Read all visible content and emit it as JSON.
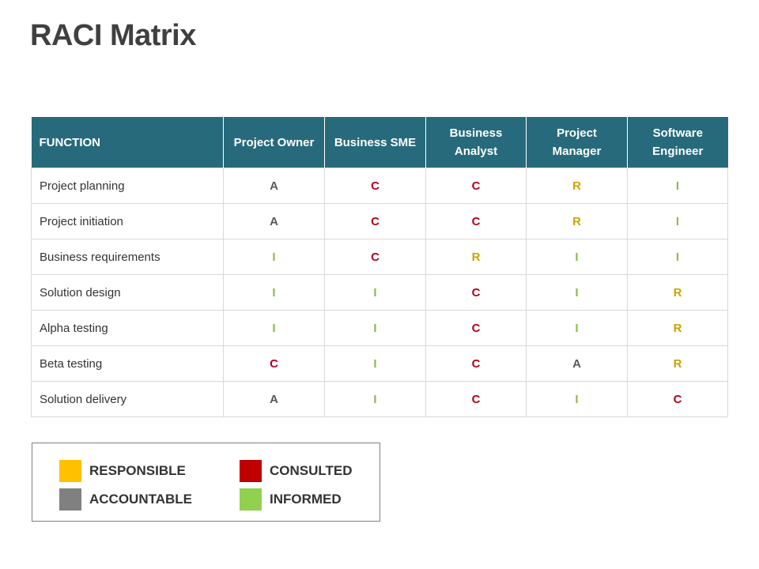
{
  "title": "RACI Matrix",
  "table": {
    "headers": [
      "FUNCTION",
      "Project Owner",
      "Business SME",
      "Business Analyst",
      "Project Manager",
      "Software Engineer"
    ],
    "rows": [
      {
        "function": "Project planning",
        "values": [
          "A",
          "C",
          "C",
          "R",
          "I"
        ]
      },
      {
        "function": "Project initiation",
        "values": [
          "A",
          "C",
          "C",
          "R",
          "I"
        ]
      },
      {
        "function": "Business requirements",
        "values": [
          "I",
          "C",
          "R",
          "I",
          "I"
        ]
      },
      {
        "function": "Solution design",
        "values": [
          "I",
          "I",
          "C",
          "I",
          "R"
        ]
      },
      {
        "function": "Alpha testing",
        "values": [
          "I",
          "I",
          "C",
          "I",
          "R"
        ]
      },
      {
        "function": "Beta testing",
        "values": [
          "C",
          "I",
          "C",
          "A",
          "R"
        ]
      },
      {
        "function": "Solution delivery",
        "values": [
          "A",
          "I",
          "C",
          "I",
          "C"
        ]
      }
    ]
  },
  "legend": {
    "items": [
      {
        "label": "RESPONSIBLE",
        "color": "#ffc000"
      },
      {
        "label": "CONSULTED",
        "color": "#c00000"
      },
      {
        "label": "ACCOUNTABLE",
        "color": "#808080"
      },
      {
        "label": "INFORMED",
        "color": "#92d050"
      }
    ]
  }
}
